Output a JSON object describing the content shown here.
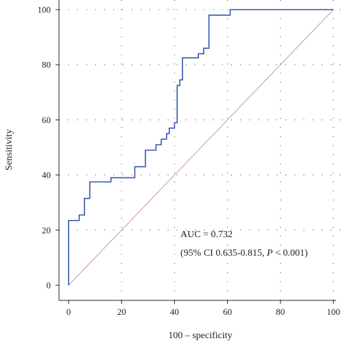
{
  "chart_data": {
    "type": "line",
    "xlabel": "100 – specificity",
    "ylabel": "Sensitivity",
    "xlim": [
      0,
      100
    ],
    "ylim": [
      0,
      100
    ],
    "x_ticks": [
      "0",
      "20",
      "40",
      "60",
      "80",
      "100"
    ],
    "y_ticks": [
      "0",
      "20",
      "40",
      "60",
      "80",
      "100"
    ],
    "grid": "dotted",
    "series": [
      {
        "color": "#3355b0",
        "x": [
          0,
          0,
          4,
          4,
          6,
          6,
          8,
          8,
          16,
          16,
          25,
          25,
          29,
          29,
          33,
          33,
          35,
          35,
          37,
          37,
          38,
          38,
          40,
          40,
          41,
          41,
          42,
          42,
          43,
          43,
          49,
          49,
          51,
          51,
          53,
          53,
          61,
          61,
          100
        ],
        "y": [
          0,
          23.5,
          23.5,
          25.5,
          25.5,
          31.5,
          31.5,
          37.5,
          37.5,
          39,
          39,
          43,
          43,
          49,
          49,
          51,
          51,
          53,
          53,
          55,
          55,
          57,
          57,
          59,
          59,
          72.5,
          72.5,
          74.5,
          74.5,
          82.5,
          82.5,
          84,
          84,
          86,
          86,
          98,
          98,
          100,
          100
        ]
      },
      {
        "color": "#c9a0a8",
        "x": [
          0,
          100
        ],
        "y": [
          0,
          100
        ]
      }
    ],
    "annotation": {
      "line1": "AUC = 0.732",
      "line2_prefix": "(95% CI 0.635-0.815, ",
      "line2_p": "P",
      "line2_suffix": " < 0.001)"
    }
  }
}
